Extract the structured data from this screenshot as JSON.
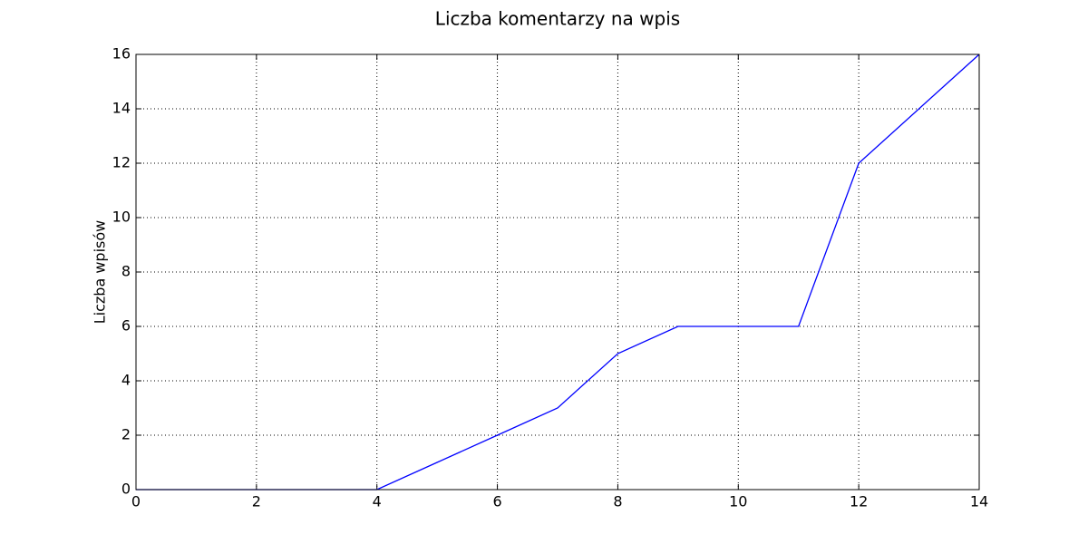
{
  "chart_data": {
    "type": "line",
    "title": "Liczba komentarzy na wpis",
    "y_label": "Liczba wpisów",
    "x": [
      0,
      1,
      2,
      3,
      4,
      5,
      6,
      7,
      8,
      9,
      10,
      11,
      12,
      13,
      14
    ],
    "values": [
      0,
      0,
      0,
      0,
      0,
      1,
      2,
      3,
      5,
      6,
      6,
      6,
      12,
      14,
      16
    ],
    "color": "#0000ff",
    "xlim": [
      0,
      14
    ],
    "xticks": [
      0,
      2,
      4,
      6,
      8,
      10,
      12,
      14
    ],
    "ylim": [
      0,
      16
    ],
    "yticks": [
      0,
      2,
      4,
      6,
      8,
      10,
      12,
      14,
      16
    ],
    "grid": true
  }
}
